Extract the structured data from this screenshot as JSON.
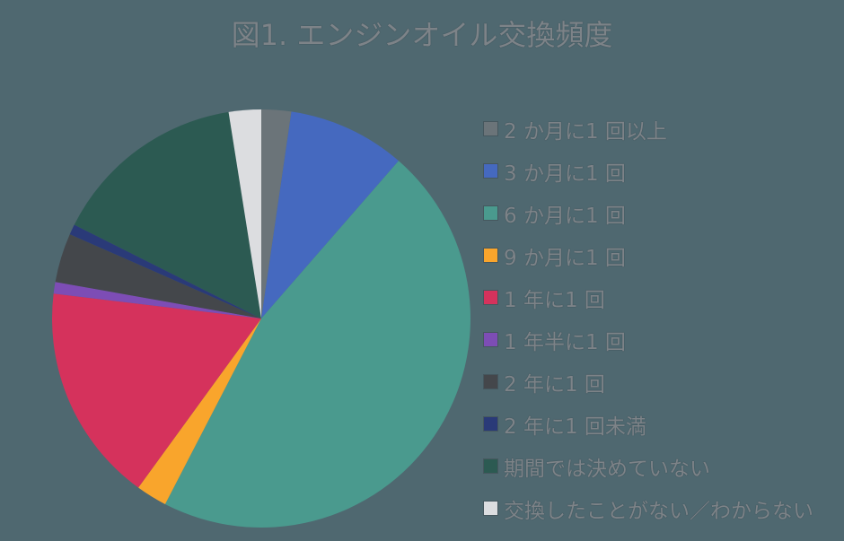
{
  "title": "図1. エンジンオイル交換頻度",
  "chart_data": {
    "type": "pie",
    "title": "図1. エンジンオイル交換頻度",
    "categories": [
      "2 か月に1 回以上",
      "3 か月に1 回",
      "6 か月に1 回",
      "9 か月に1 回",
      "1 年に1 回",
      "1 年半に1 回",
      "2 年に1 回",
      "2 年に1 回未満",
      "期間では決めていない",
      "交換したことがない／わからない"
    ],
    "values": [
      2.3,
      9.1,
      46.2,
      2.4,
      16.9,
      0.9,
      3.8,
      0.8,
      15.1,
      2.5
    ],
    "colors": [
      "#6b7479",
      "#4569bf",
      "#4a9a8e",
      "#f9a52c",
      "#d5325c",
      "#7d4db5",
      "#44474b",
      "#2a3a78",
      "#2c5a52",
      "#dcdde0"
    ],
    "start_angle_deg": 0,
    "direction": "clockwise",
    "legend_position": "right",
    "data_labels": false
  },
  "legend": {
    "items": [
      {
        "label": "2 か月に1 回以上",
        "color": "#6b7479"
      },
      {
        "label": "3 か月に1 回",
        "color": "#4569bf"
      },
      {
        "label": "6 か月に1 回",
        "color": "#4a9a8e"
      },
      {
        "label": "9 か月に1 回",
        "color": "#f9a52c"
      },
      {
        "label": "1 年に1 回",
        "color": "#d5325c"
      },
      {
        "label": "1 年半に1 回",
        "color": "#7d4db5"
      },
      {
        "label": "2 年に1 回",
        "color": "#44474b"
      },
      {
        "label": "2 年に1 回未満",
        "color": "#2a3a78"
      },
      {
        "label": "期間では決めていない",
        "color": "#2c5a52"
      },
      {
        "label": "交換したことがない／わからない",
        "color": "#dcdde0"
      }
    ]
  }
}
